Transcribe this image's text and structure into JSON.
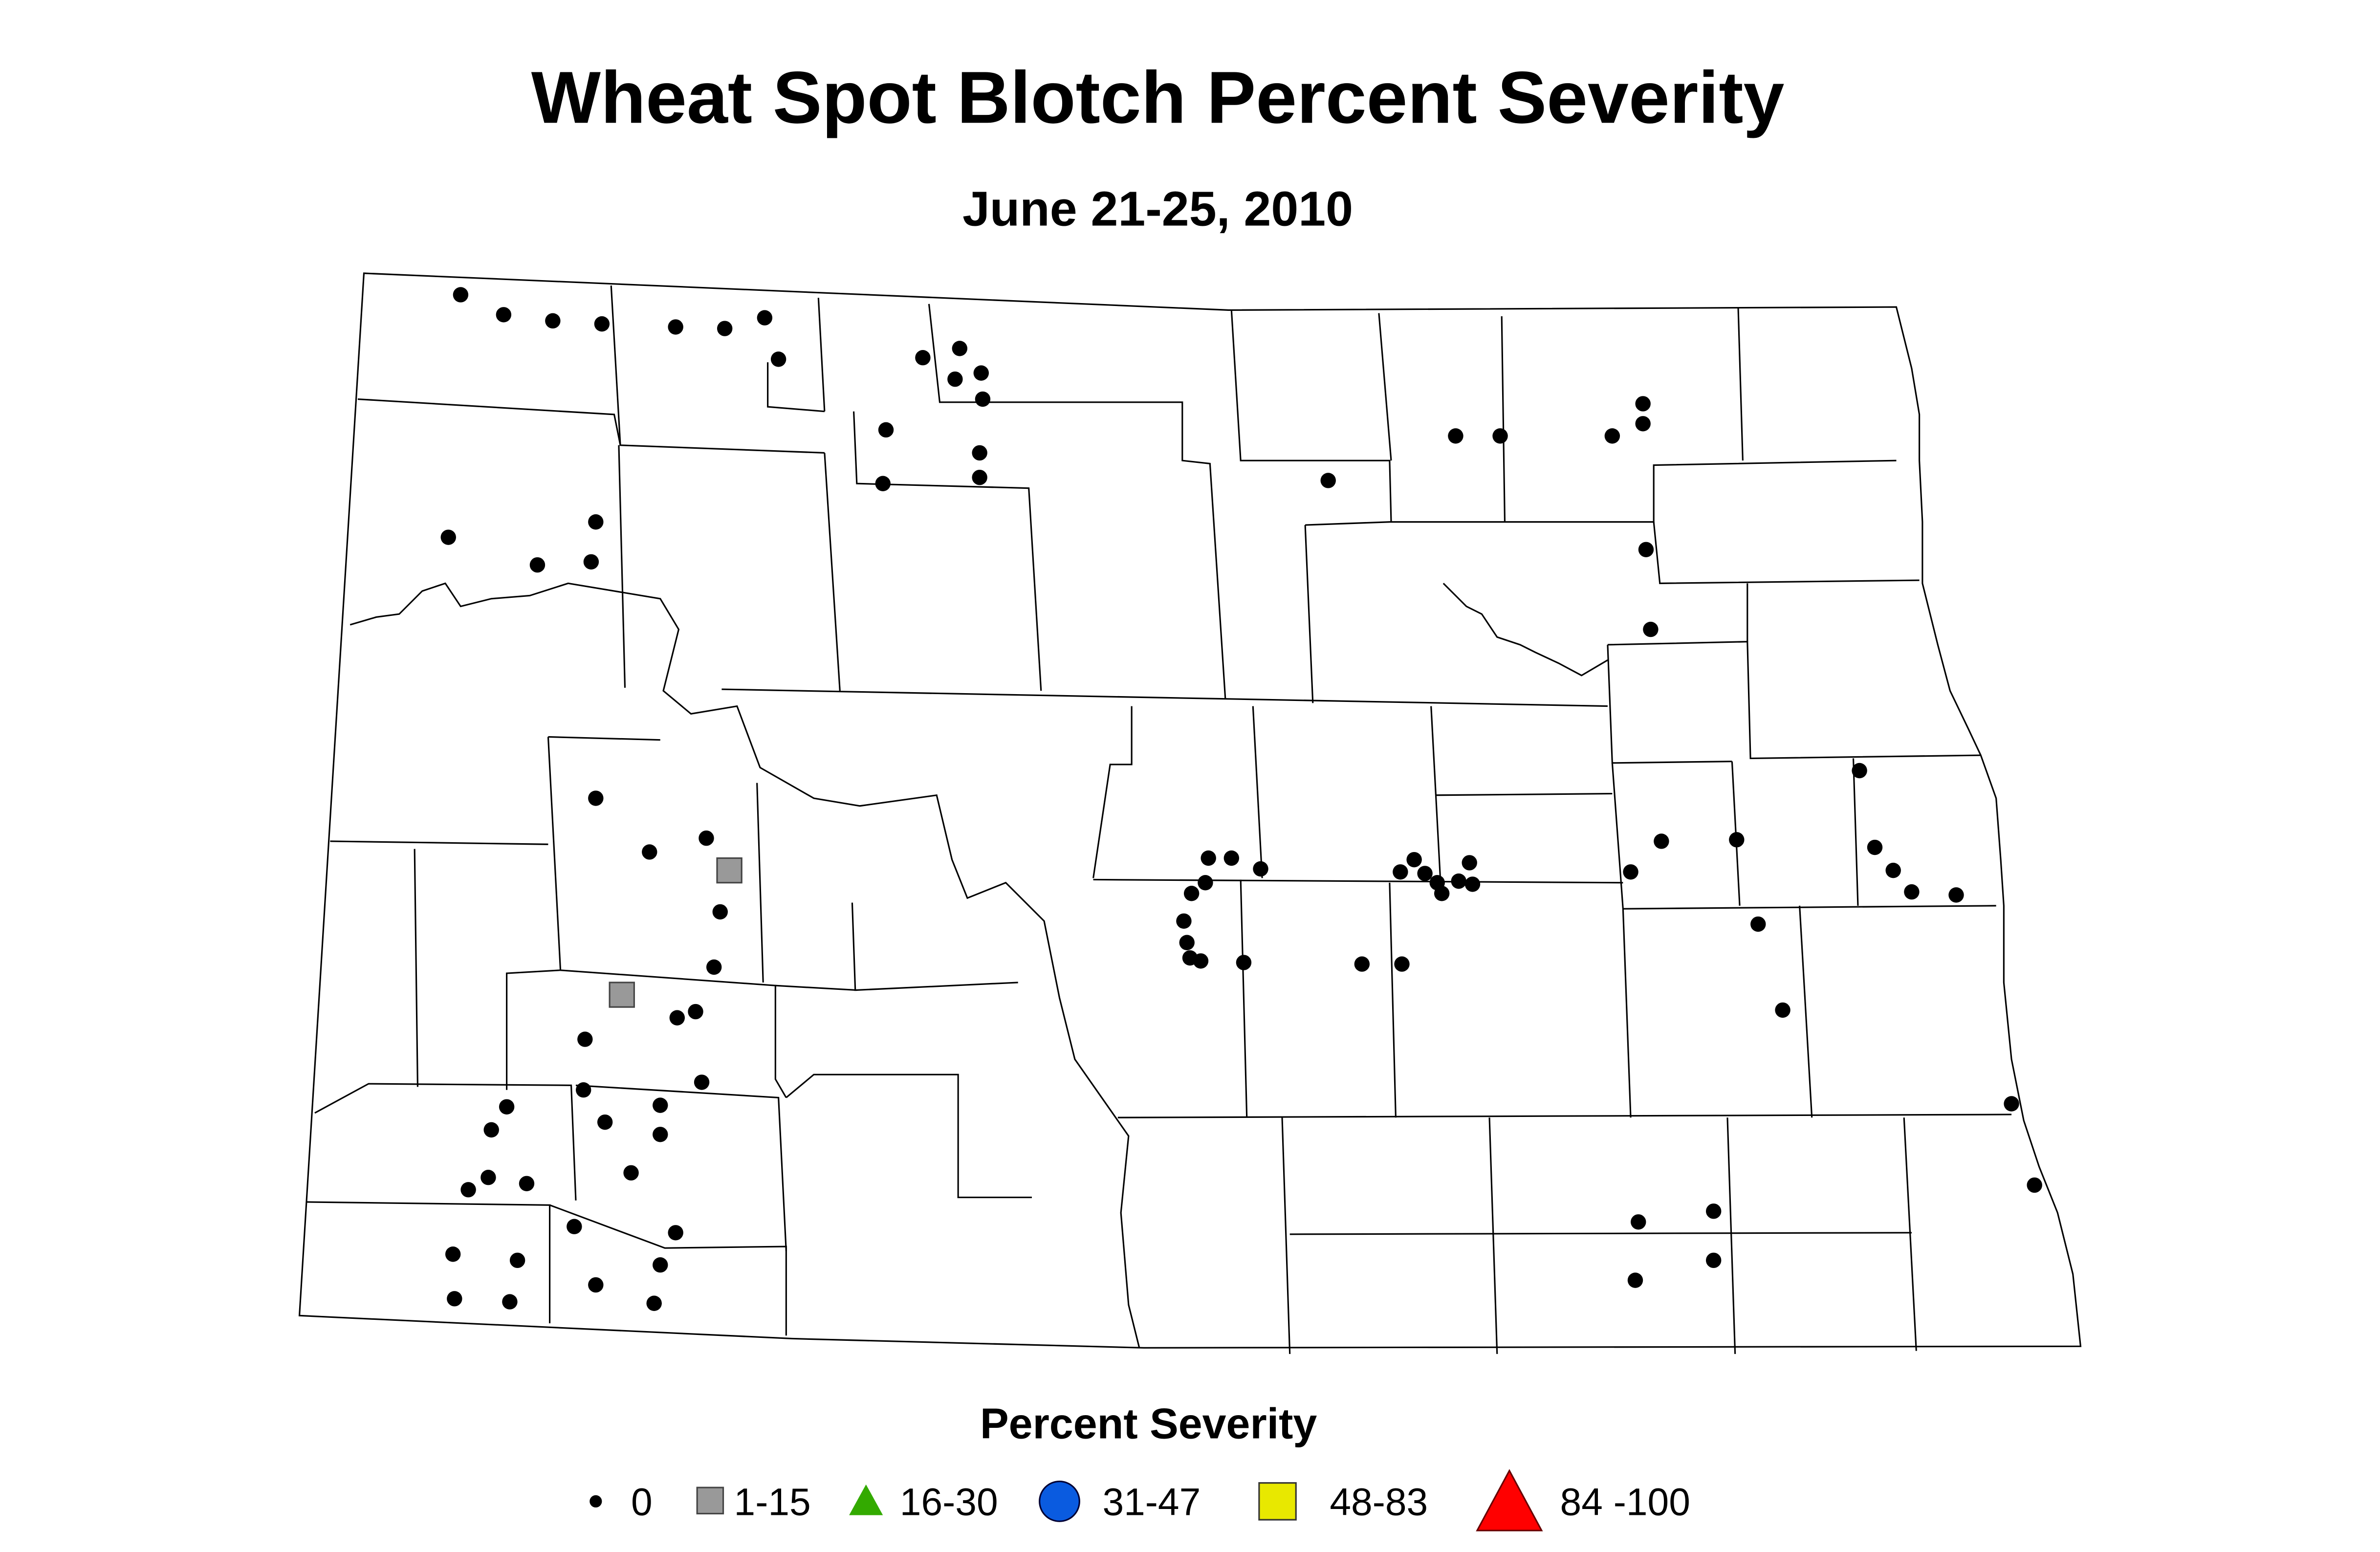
{
  "title": "Wheat Spot Blotch Percent Severity",
  "subtitle": "June 21-25, 2010",
  "legend": {
    "title": "Percent Severity",
    "items": [
      {
        "label": "0"
      },
      {
        "label": "1-15"
      },
      {
        "label": "16-30"
      },
      {
        "label": "31-47"
      },
      {
        "label": "48-83"
      },
      {
        "label": "84 -100"
      }
    ]
  }
}
